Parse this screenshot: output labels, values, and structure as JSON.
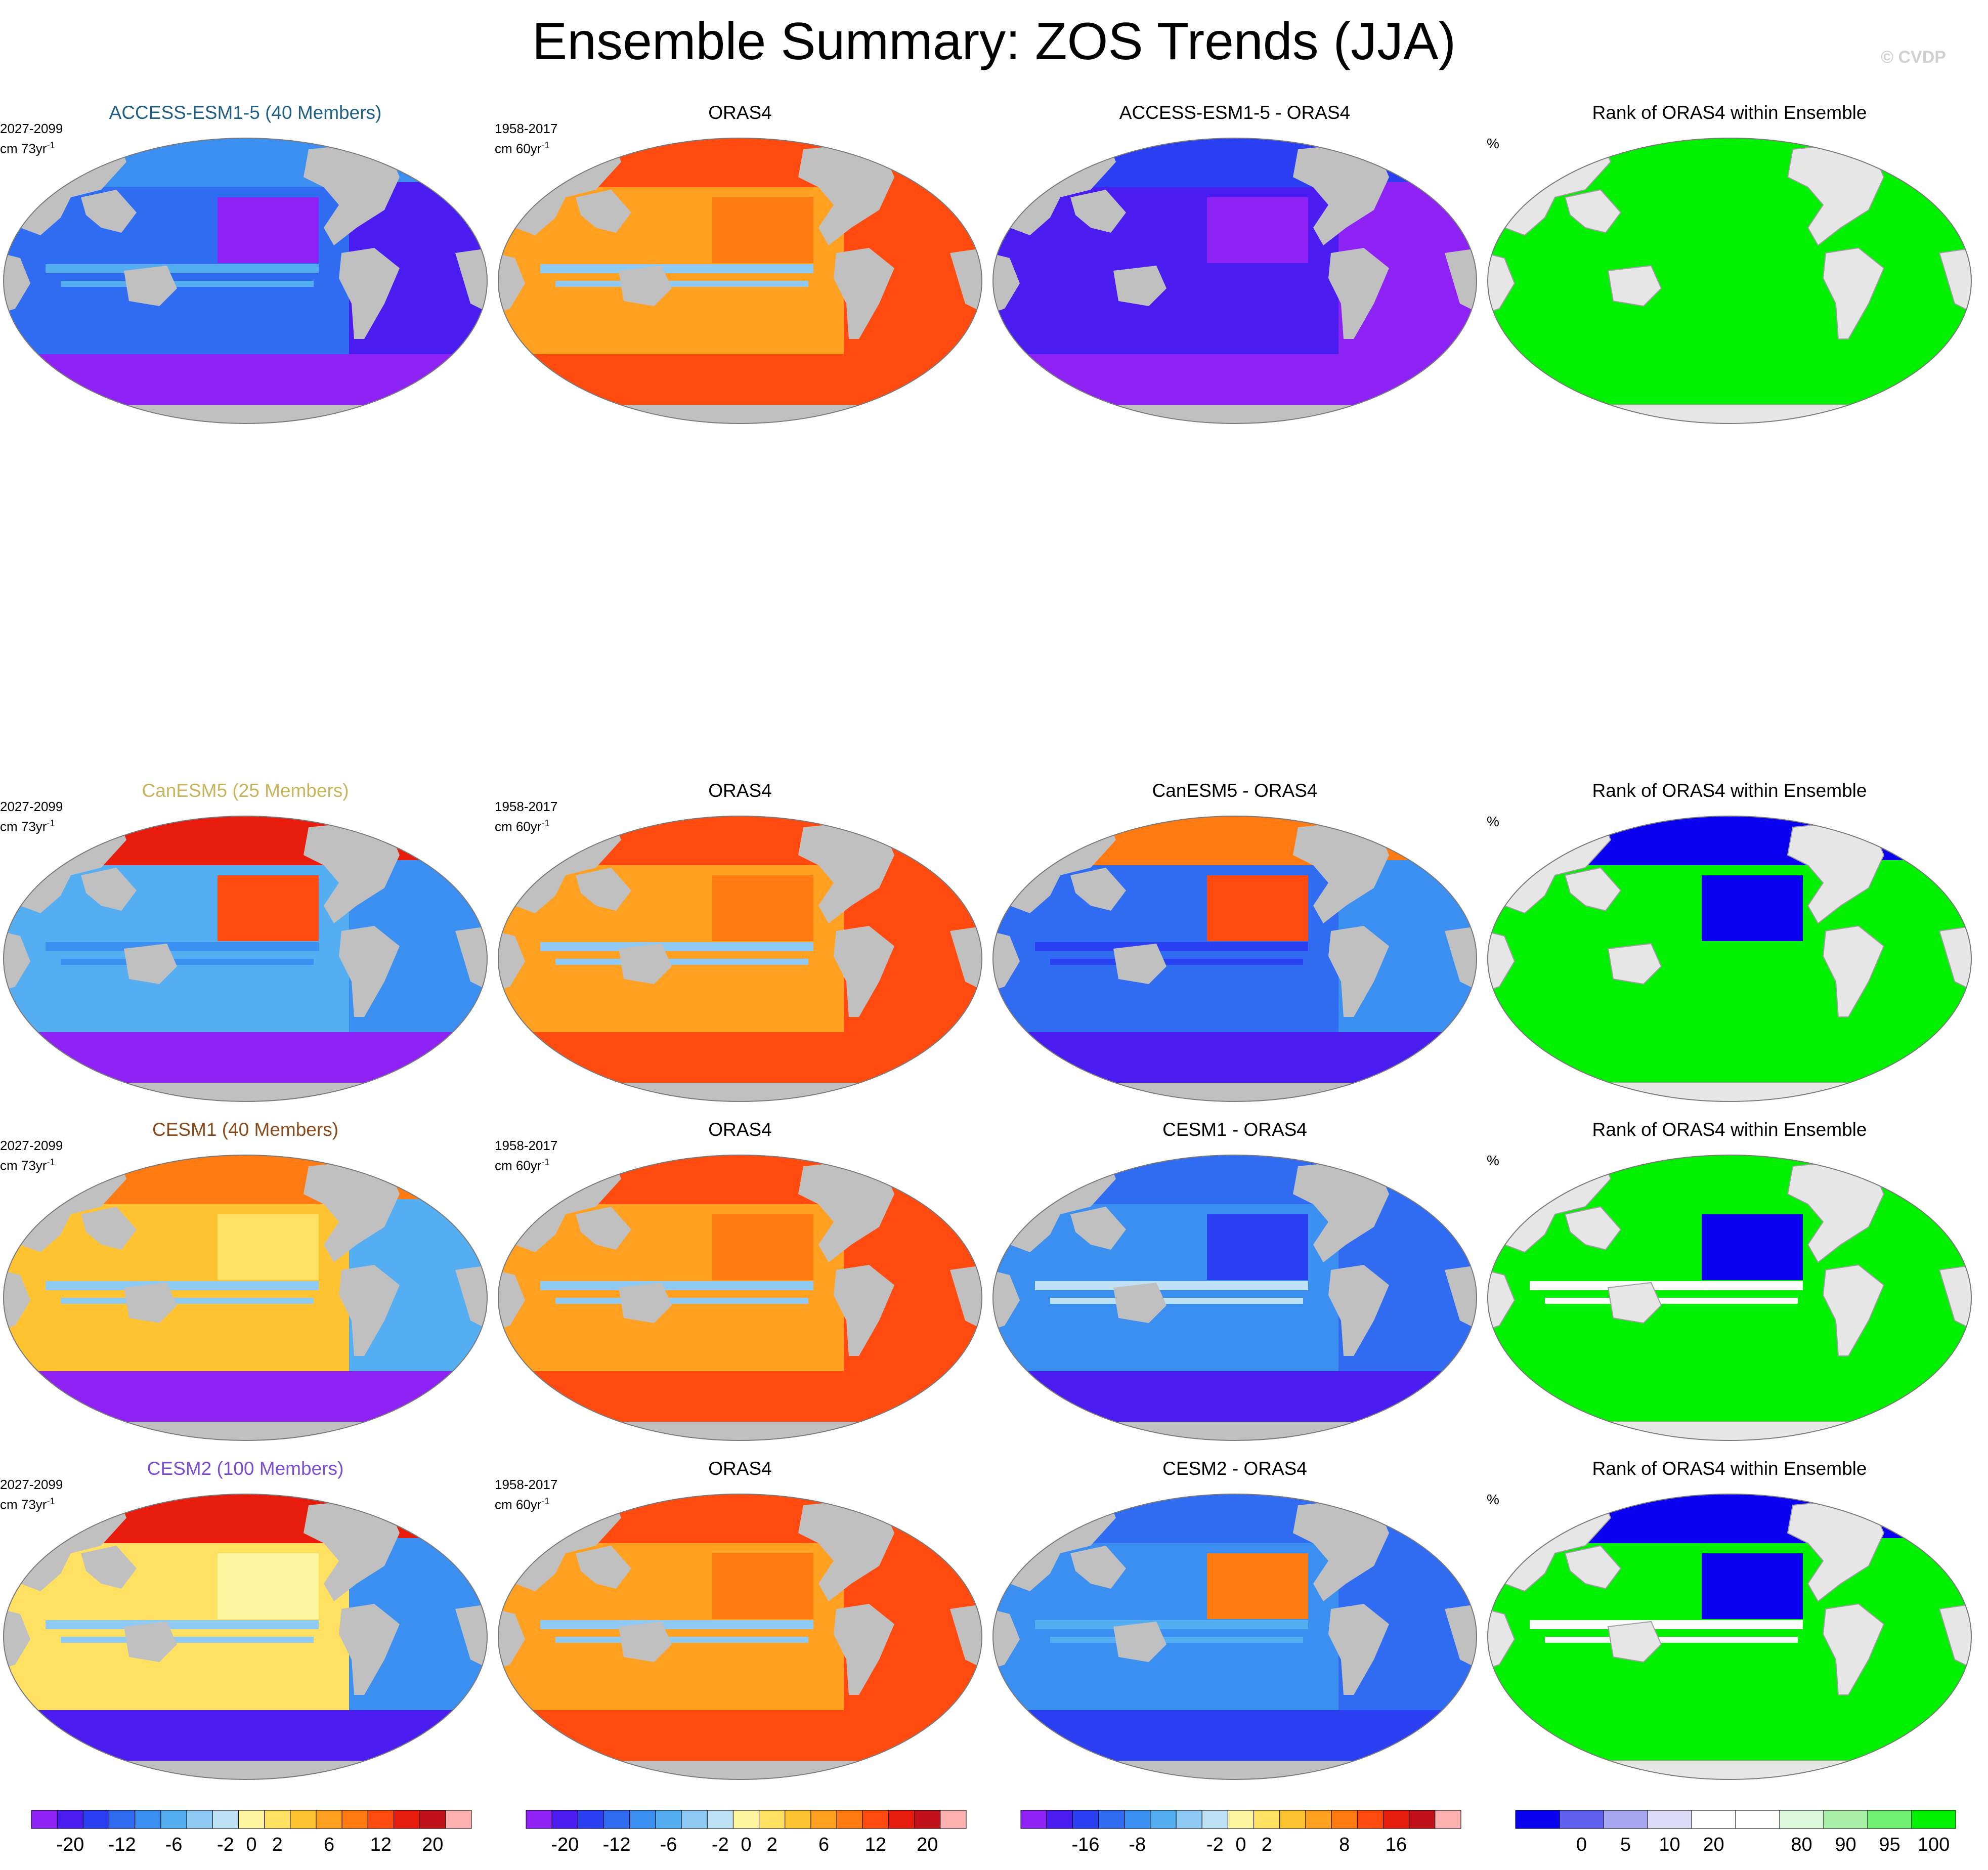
{
  "title": "Ensemble Summary: ZOS Trends (JJA)",
  "watermark": "© CVDP",
  "palettes": {
    "trend": [
      "#8e22f5",
      "#4a1cf0",
      "#2a3ef2",
      "#2f6cf2",
      "#3a8ff0",
      "#55aef2",
      "#8fcaf5",
      "#bfe1f6",
      "#fff5a0",
      "#ffe060",
      "#ffc230",
      "#ffa020",
      "#ff7a10",
      "#ff4a10",
      "#e81c0c",
      "#c0101a",
      "#ffb0b0"
    ],
    "diff": [
      "#8e22f5",
      "#4a1cf0",
      "#2a3ef2",
      "#2f6cf2",
      "#3a8ff0",
      "#55aef2",
      "#8fcaf5",
      "#bfe1f6",
      "#fff5a0",
      "#ffe060",
      "#ffc230",
      "#ffa020",
      "#ff7a10",
      "#ff4a10",
      "#e81c0c",
      "#c0101a",
      "#ffb0b0"
    ],
    "rank": [
      "#0a00f0",
      "#6060f0",
      "#a8a8f0",
      "#dcdcf8",
      "#ffffff",
      "#ffffff",
      "#dcf8dc",
      "#a8f0a8",
      "#70f070",
      "#00f000"
    ]
  },
  "map_styles": {
    "land": "#c0c0c0",
    "rank_land": "#e6e6e6",
    "rank_coast": "#a0a0a0"
  },
  "rows": [
    {
      "model_title": "ACCESS-ESM1-5 (40 Members)",
      "title_color": "#1f5f86",
      "model_years": "2027-2099",
      "model_units": "cm 73yr",
      "obs_title": "ORAS4",
      "obs_years": "1958-2017",
      "obs_units": "cm 60yr",
      "diff_title": "ACCESS-ESM1-5 - ORAS4",
      "rank_title": "Rank of ORAS4 within Ensemble",
      "rank_unit": "%",
      "model_style": {
        "mid": "#2f6cf2",
        "north": "#3a8ff0",
        "tropics": "#55aef2",
        "south": "#8e22f5",
        "east": "#8e22f5",
        "atl": "#4a1cf0"
      },
      "obs_style": {
        "mid": "#ffa020",
        "north": "#ff4a10",
        "tropics": "#8fcaf5",
        "south": "#ff4a10",
        "east": "#ff7a10",
        "atl": "#ff4a10"
      },
      "diff_style": {
        "mid": "#4a1cf0",
        "north": "#2a3ef2",
        "tropics": "#4a1cf0",
        "south": "#8e22f5",
        "east": "#8e22f5",
        "atl": "#8e22f5"
      },
      "rank_style": {
        "mid": "#00f000",
        "north": "#00f000",
        "tropics": "#00f000",
        "south": "#00f000",
        "east": "#00f000",
        "atl": "#00f000"
      }
    },
    {
      "model_title": "CanESM5 (25 Members)",
      "title_color": "#c8b45a",
      "model_years": "2027-2099",
      "model_units": "cm 73yr",
      "obs_title": "ORAS4",
      "obs_years": "1958-2017",
      "obs_units": "cm 60yr",
      "diff_title": "CanESM5 - ORAS4",
      "rank_title": "Rank of ORAS4 within Ensemble",
      "rank_unit": "%",
      "model_style": {
        "mid": "#55aef2",
        "north": "#e81c0c",
        "tropics": "#3a8ff0",
        "south": "#8e22f5",
        "east": "#ff4a10",
        "atl": "#3a8ff0"
      },
      "obs_style": {
        "mid": "#ffa020",
        "north": "#ff4a10",
        "tropics": "#8fcaf5",
        "south": "#ff4a10",
        "east": "#ff7a10",
        "atl": "#ff4a10"
      },
      "diff_style": {
        "mid": "#2f6cf2",
        "north": "#ff7a10",
        "tropics": "#2a3ef2",
        "south": "#4a1cf0",
        "east": "#ff4a10",
        "atl": "#3a8ff0"
      },
      "rank_style": {
        "mid": "#00f000",
        "north": "#0a00f0",
        "tropics": "#00f000",
        "south": "#00f000",
        "east": "#0a00f0",
        "atl": "#00f000"
      }
    },
    {
      "model_title": "CESM1 (40 Members)",
      "title_color": "#8a4a1a",
      "model_years": "2027-2099",
      "model_units": "cm 73yr",
      "obs_title": "ORAS4",
      "obs_years": "1958-2017",
      "obs_units": "cm 60yr",
      "diff_title": "CESM1 - ORAS4",
      "rank_title": "Rank of ORAS4 within Ensemble",
      "rank_unit": "%",
      "model_style": {
        "mid": "#ffc230",
        "north": "#ff7a10",
        "tropics": "#8fcaf5",
        "south": "#8e22f5",
        "east": "#ffe060",
        "atl": "#55aef2"
      },
      "obs_style": {
        "mid": "#ffa020",
        "north": "#ff4a10",
        "tropics": "#8fcaf5",
        "south": "#ff4a10",
        "east": "#ff7a10",
        "atl": "#ff4a10"
      },
      "diff_style": {
        "mid": "#3a8ff0",
        "north": "#2f6cf2",
        "tropics": "#bfe1f6",
        "south": "#4a1cf0",
        "east": "#2a3ef2",
        "atl": "#2f6cf2"
      },
      "rank_style": {
        "mid": "#00f000",
        "north": "#00f000",
        "tropics": "#ffffff",
        "south": "#00f000",
        "east": "#0a00f0",
        "atl": "#00f000"
      }
    },
    {
      "model_title": "CESM2 (100 Members)",
      "title_color": "#7a4ed0",
      "model_years": "2027-2099",
      "model_units": "cm 73yr",
      "obs_title": "ORAS4",
      "obs_years": "1958-2017",
      "obs_units": "cm 60yr",
      "diff_title": "CESM2 - ORAS4",
      "rank_title": "Rank of ORAS4 within Ensemble",
      "rank_unit": "%",
      "model_style": {
        "mid": "#ffe060",
        "north": "#e81c0c",
        "tropics": "#8fcaf5",
        "south": "#4a1cf0",
        "east": "#fff5a0",
        "atl": "#3a8ff0"
      },
      "obs_style": {
        "mid": "#ffa020",
        "north": "#ff4a10",
        "tropics": "#8fcaf5",
        "south": "#ff4a10",
        "east": "#ff7a10",
        "atl": "#ff4a10"
      },
      "diff_style": {
        "mid": "#3a8ff0",
        "north": "#2f6cf2",
        "tropics": "#55aef2",
        "south": "#2a3ef2",
        "east": "#ff7a10",
        "atl": "#2f6cf2"
      },
      "rank_style": {
        "mid": "#00f000",
        "north": "#0a00f0",
        "tropics": "#ffffff",
        "south": "#00f000",
        "east": "#0a00f0",
        "atl": "#00f000"
      }
    }
  ],
  "colorbars": [
    {
      "palette": "trend",
      "labels": [
        "-20",
        "-12",
        "-6",
        "-2",
        "0",
        "2",
        "6",
        "12",
        "20"
      ],
      "boundaries": [
        1,
        3,
        5,
        7,
        8,
        9,
        11,
        13,
        15
      ]
    },
    {
      "palette": "trend",
      "labels": [
        "-20",
        "-12",
        "-6",
        "-2",
        "0",
        "2",
        "6",
        "12",
        "20"
      ],
      "boundaries": [
        1,
        3,
        5,
        7,
        8,
        9,
        11,
        13,
        15
      ]
    },
    {
      "palette": "diff",
      "labels": [
        "-16",
        "-8",
        "-2",
        "0",
        "2",
        "8",
        "16"
      ],
      "boundaries": [
        2,
        4,
        7,
        8,
        9,
        12,
        14
      ]
    },
    {
      "palette": "rank",
      "labels": [
        "0",
        "5",
        "10",
        "20",
        "80",
        "90",
        "95",
        "100"
      ],
      "boundaries": [
        1,
        2,
        3,
        4,
        6,
        7,
        8,
        9
      ]
    }
  ],
  "chart_data": {
    "type": "heatmap",
    "title": "Ensemble Summary: ZOS Trends (JJA)",
    "layout": "4 rows × 4 columns of global map panels plus one colorbar per column",
    "columns": [
      "ensemble-mean model trend",
      "ORAS4 observed trend",
      "model minus ORAS4",
      "rank of ORAS4 within ensemble"
    ],
    "models": [
      {
        "name": "ACCESS-ESM1-5",
        "members": 40,
        "period": "2027-2099",
        "units": "cm 73yr-1"
      },
      {
        "name": "CanESM5",
        "members": 25,
        "period": "2027-2099",
        "units": "cm 73yr-1"
      },
      {
        "name": "CESM1",
        "members": 40,
        "period": "2027-2099",
        "units": "cm 73yr-1"
      },
      {
        "name": "CESM2",
        "members": 100,
        "period": "2027-2099",
        "units": "cm 73yr-1"
      }
    ],
    "observations": {
      "name": "ORAS4",
      "period": "1958-2017",
      "units": "cm 60yr-1"
    },
    "colorbar_levels": {
      "trend": [
        "-20",
        "-12",
        "-6",
        "-2",
        "0",
        "2",
        "6",
        "12",
        "20"
      ],
      "difference": [
        "-16",
        "-8",
        "-2",
        "0",
        "2",
        "8",
        "16"
      ],
      "rank_percent": [
        "0",
        "5",
        "10",
        "20",
        "80",
        "90",
        "95",
        "100"
      ]
    }
  }
}
